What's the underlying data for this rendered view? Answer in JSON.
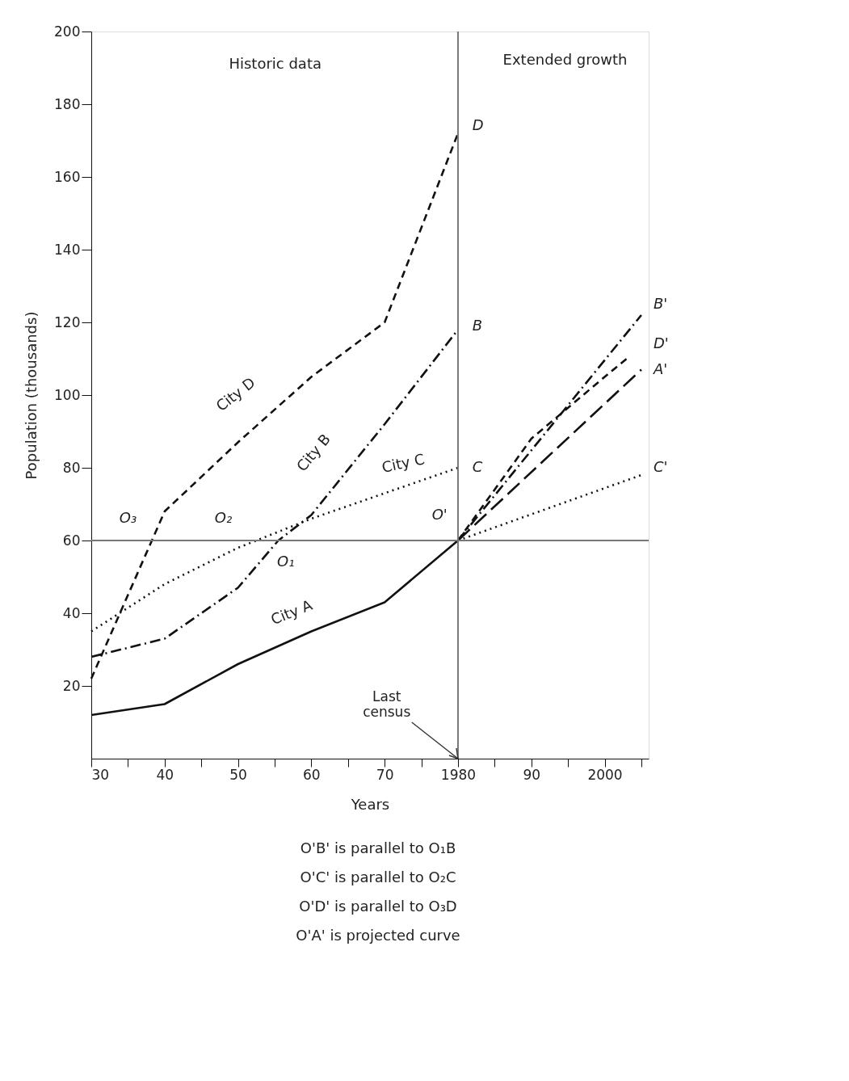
{
  "chart_data": {
    "type": "line",
    "xlabel": "Years",
    "ylabel": "Population (thousands)",
    "xlim": [
      1930,
      2006
    ],
    "ylim": [
      0,
      200
    ],
    "xticks": [
      {
        "value": 1930,
        "label": "30"
      },
      {
        "value": 1935,
        "label": null
      },
      {
        "value": 1940,
        "label": "40"
      },
      {
        "value": 1945,
        "label": null
      },
      {
        "value": 1950,
        "label": "50"
      },
      {
        "value": 1955,
        "label": null
      },
      {
        "value": 1960,
        "label": "60"
      },
      {
        "value": 1965,
        "label": null
      },
      {
        "value": 1970,
        "label": "70"
      },
      {
        "value": 1975,
        "label": null
      },
      {
        "value": 1980,
        "label": "1980"
      },
      {
        "value": 1985,
        "label": null
      },
      {
        "value": 1990,
        "label": "90"
      },
      {
        "value": 1995,
        "label": null
      },
      {
        "value": 2000,
        "label": "2000"
      },
      {
        "value": 2005,
        "label": null
      }
    ],
    "yticks": [
      20,
      40,
      60,
      80,
      100,
      120,
      140,
      160,
      180,
      200
    ],
    "grid": false,
    "marker": "none",
    "series": [
      {
        "color": "#111111",
        "line_style": "solid",
        "x": [
          1930,
          1940,
          1950,
          1960,
          1970,
          1980
        ],
        "values": [
          12,
          15,
          26,
          35,
          43,
          60
        ]
      },
      {
        "color": "#111111",
        "line_style": "dashdot",
        "x": [
          1930,
          1940,
          1950,
          1955.5,
          1960,
          1970,
          1980
        ],
        "values": [
          28,
          33,
          47,
          60,
          67,
          92,
          118
        ]
      },
      {
        "color": "#111111",
        "line_style": "dotted",
        "x": [
          1930,
          1940,
          1950,
          1960,
          1970,
          1980
        ],
        "values": [
          35,
          48,
          58,
          66,
          73,
          80
        ]
      },
      {
        "color": "#111111",
        "line_style": "dashed",
        "x": [
          1930,
          1940,
          1950,
          1960,
          1970,
          1980
        ],
        "values": [
          22,
          68,
          87,
          105,
          120,
          172
        ]
      },
      {
        "color": "#111111",
        "line_style": "longdash",
        "x": [
          1980,
          2005
        ],
        "values": [
          60,
          107
        ]
      },
      {
        "color": "#111111",
        "line_style": "dashdot",
        "x": [
          1980,
          2005
        ],
        "values": [
          60,
          122
        ]
      },
      {
        "color": "#111111",
        "line_style": "dotted",
        "x": [
          1980,
          2005
        ],
        "values": [
          60,
          78
        ]
      },
      {
        "color": "#111111",
        "line_style": "dashed",
        "x": [
          1980,
          1990,
          2000,
          2003
        ],
        "values": [
          60,
          88,
          105,
          110
        ]
      }
    ],
    "ref_lines": [
      {
        "axis": "x",
        "value": 1980,
        "color": "#777777"
      },
      {
        "axis": "y",
        "value": 60,
        "color": "#777777"
      }
    ],
    "annotations": [
      "Historic data",
      "Extended growth",
      "City A",
      "City B",
      "City C",
      "City D",
      "D",
      "B",
      "C",
      "B'",
      "D'",
      "A'",
      "C'",
      "O'",
      "O₁",
      "O₂",
      "O₃",
      {
        "text": "Last census",
        "x": 1980,
        "y": 0
      },
      "O'B' is parallel to O₁B",
      "O'C' is parallel to O₂C",
      "O'D' is parallel to O₃D",
      "O'A' is projected curve"
    ]
  }
}
